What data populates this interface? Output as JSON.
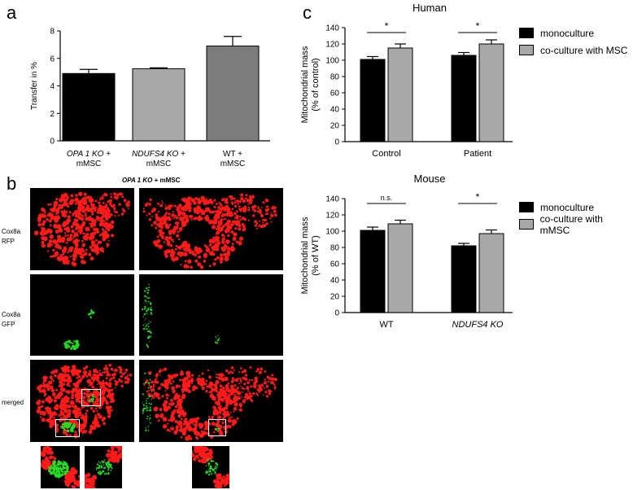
{
  "panel_a": {
    "letter": "a",
    "chart_data": {
      "type": "bar",
      "categories": [
        {
          "line1": "OPA 1 KO +",
          "line2": "mMSC",
          "italic": "OPA 1 KO",
          "rest": " +"
        },
        {
          "line1": "NDUFS4 KO +",
          "line2": "mMSC",
          "italic": "NDUFS4 KO",
          "rest": " +"
        },
        {
          "line1": "WT +",
          "line2": "mMSC",
          "italic": "",
          "rest": "WT +"
        }
      ],
      "values": [
        4.9,
        5.25,
        6.9
      ],
      "errors": [
        0.3,
        0.06,
        0.7
      ],
      "colors": [
        "#000000",
        "#a8a8a8",
        "#7c7c7c"
      ],
      "ylabel": "Transfer in %",
      "ylim": [
        0,
        8
      ],
      "yticks": [
        0,
        2,
        4,
        6,
        8
      ],
      "grid": false
    }
  },
  "panel_b": {
    "letter": "b",
    "title_italic": "OPA 1 KO",
    "title_rest": " + mMSC",
    "rows": [
      {
        "line1": "Cox8a",
        "line2": "RFP"
      },
      {
        "line1": "Cox8a",
        "line2": "GFP"
      },
      {
        "line1": "merged",
        "line2": ""
      }
    ],
    "colors": {
      "rfp": "#ff1a1a",
      "gfp": "#22dd22",
      "background": "#000000",
      "inset_border": "#ffffff"
    }
  },
  "panel_c": {
    "letter": "c",
    "chart_data": [
      {
        "type": "bar",
        "title": "Human",
        "categories": [
          "Control",
          "Patient"
        ],
        "italic_categories": [
          false,
          false
        ],
        "series": [
          {
            "name": "monoculture",
            "values": [
              101,
              106
            ],
            "errors": [
              3.5,
              3.5
            ],
            "color": "#000000"
          },
          {
            "name": "co-culture with  MSC",
            "values": [
              115,
              120
            ],
            "errors": [
              5,
              5
            ],
            "color": "#a8a8a8"
          }
        ],
        "ylabel_line1": "Mitochondrial mass",
        "ylabel_line2": "(% of control)",
        "ylim": [
          0,
          140
        ],
        "yticks": [
          0,
          20,
          40,
          60,
          80,
          100,
          120,
          140
        ],
        "significance": [
          "*",
          "*"
        ],
        "legend_position": "right",
        "grid": false
      },
      {
        "type": "bar",
        "title": "Mouse",
        "categories": [
          "WT",
          "NDUFS4 KO"
        ],
        "italic_categories": [
          false,
          true
        ],
        "series": [
          {
            "name": "monoculture",
            "values": [
              101,
              82
            ],
            "errors": [
              4,
              3
            ],
            "color": "#000000"
          },
          {
            "name": "co-culture with mMSC",
            "values": [
              109,
              97
            ],
            "errors": [
              4.5,
              4.5
            ],
            "color": "#a8a8a8"
          }
        ],
        "ylabel_line1": "Mitochondrial mass",
        "ylabel_line2": "(% of WT)",
        "ylim": [
          0,
          140
        ],
        "yticks": [
          0,
          20,
          40,
          60,
          80,
          100,
          120,
          140
        ],
        "significance": [
          "n.s.",
          "*"
        ],
        "legend_position": "right",
        "grid": false
      }
    ]
  }
}
